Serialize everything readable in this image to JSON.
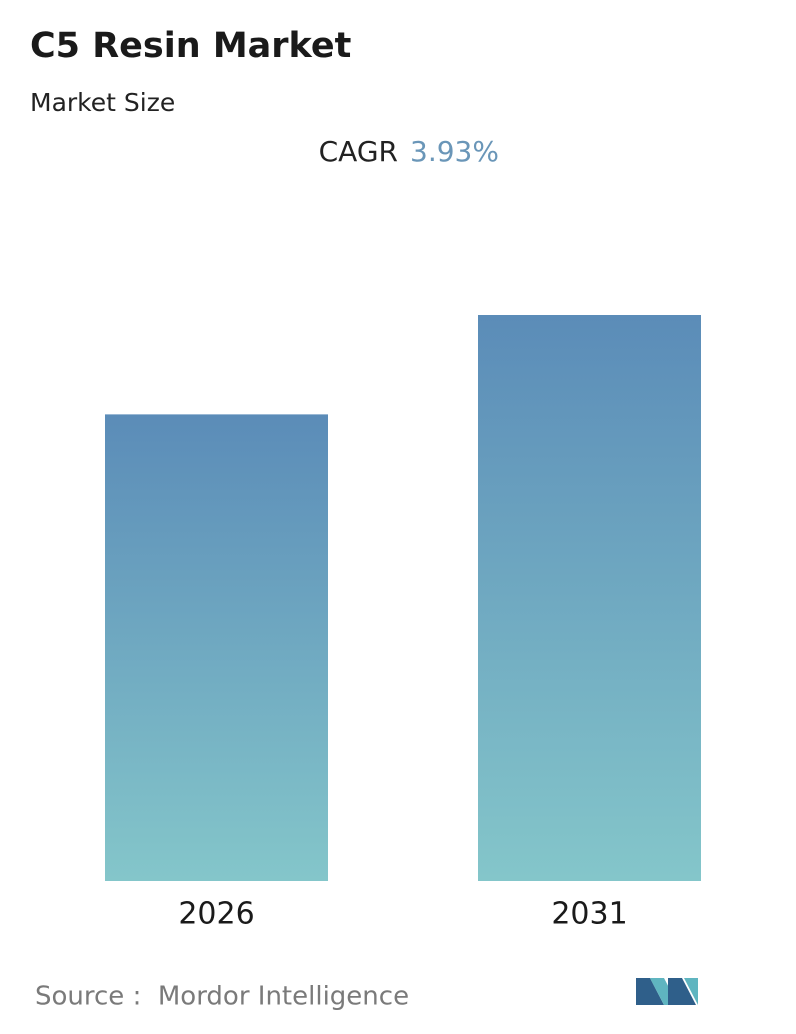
{
  "chart_data": {
    "type": "bar",
    "title": "C5 Resin Market",
    "subtitle": "Market Size",
    "cagr_label": "CAGR",
    "cagr_value": "3.93%",
    "categories": [
      "2026",
      "2031"
    ],
    "values": [
      100,
      121.3
    ],
    "ylim": [
      0,
      121.3
    ],
    "gradient": [
      "#5b8cb8",
      "#84c6ca"
    ],
    "source": "Source :  Mordor Intelligence"
  }
}
